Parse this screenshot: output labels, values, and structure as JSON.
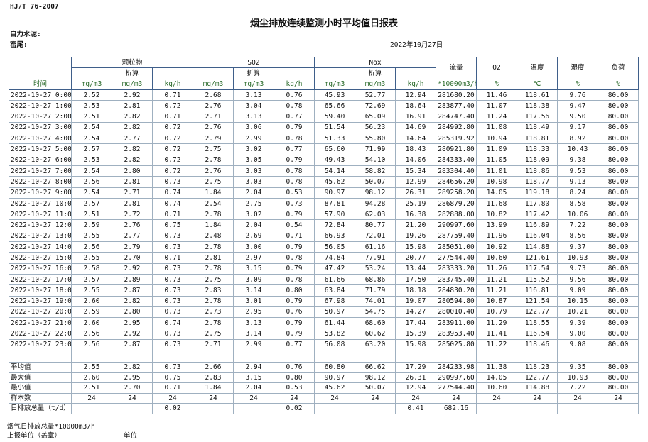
{
  "header": {
    "standard": "HJ/T  76-2007",
    "title": "烟尘排放连续监测小时平均值日报表",
    "company": "自力水泥:",
    "unit": "窑尾:",
    "date": "2022年10月27日"
  },
  "table": {
    "groups": [
      "颗粒物",
      "SO2",
      "Nox"
    ],
    "converted": [
      "折算",
      "折算",
      "折算"
    ],
    "single_headers": [
      "流量",
      "O2",
      "温度",
      "湿度",
      "负荷"
    ],
    "units": [
      "时间",
      "mg/m3",
      "mg/m3",
      "kg/h",
      "mg/m3",
      "mg/m3",
      "kg/h",
      "mg/m3",
      "mg/m3",
      "kg/h",
      "*10000m3/h",
      "%",
      "℃",
      "%",
      "%"
    ],
    "rows": [
      [
        "2022-10-27  0:00",
        "2.52",
        "2.92",
        "0.71",
        "2.68",
        "3.13",
        "0.76",
        "45.93",
        "52.77",
        "12.94",
        "281680.20",
        "11.46",
        "118.61",
        "9.76",
        "80.00"
      ],
      [
        "2022-10-27  1:00",
        "2.53",
        "2.81",
        "0.72",
        "2.76",
        "3.04",
        "0.78",
        "65.66",
        "72.69",
        "18.64",
        "283877.40",
        "11.07",
        "118.38",
        "9.47",
        "80.00"
      ],
      [
        "2022-10-27  2:00",
        "2.51",
        "2.82",
        "0.71",
        "2.71",
        "3.13",
        "0.77",
        "59.40",
        "65.09",
        "16.91",
        "284747.40",
        "11.24",
        "117.56",
        "9.50",
        "80.00"
      ],
      [
        "2022-10-27  3:00",
        "2.54",
        "2.82",
        "0.72",
        "2.76",
        "3.06",
        "0.79",
        "51.54",
        "56.23",
        "14.69",
        "284992.80",
        "11.08",
        "118.49",
        "9.17",
        "80.00"
      ],
      [
        "2022-10-27  4:00",
        "2.54",
        "2.77",
        "0.72",
        "2.79",
        "2.99",
        "0.78",
        "51.33",
        "55.80",
        "14.64",
        "285319.92",
        "10.94",
        "118.81",
        "8.92",
        "80.00"
      ],
      [
        "2022-10-27  5:00",
        "2.57",
        "2.82",
        "0.72",
        "2.75",
        "3.02",
        "0.77",
        "65.60",
        "71.99",
        "18.43",
        "280921.80",
        "11.09",
        "118.33",
        "10.43",
        "80.00"
      ],
      [
        "2022-10-27  6:00",
        "2.53",
        "2.82",
        "0.72",
        "2.78",
        "3.05",
        "0.79",
        "49.43",
        "54.10",
        "14.06",
        "284333.40",
        "11.05",
        "118.09",
        "9.38",
        "80.00"
      ],
      [
        "2022-10-27  7:00",
        "2.54",
        "2.80",
        "0.72",
        "2.76",
        "3.03",
        "0.78",
        "54.14",
        "58.82",
        "15.34",
        "283304.40",
        "11.01",
        "118.86",
        "9.53",
        "80.00"
      ],
      [
        "2022-10-27  8:00",
        "2.56",
        "2.81",
        "0.73",
        "2.75",
        "3.03",
        "0.78",
        "45.62",
        "50.07",
        "12.99",
        "284656.20",
        "10.98",
        "118.77",
        "9.13",
        "80.00"
      ],
      [
        "2022-10-27  9:00",
        "2.54",
        "2.71",
        "0.74",
        "1.84",
        "2.04",
        "0.53",
        "90.97",
        "98.12",
        "26.31",
        "289258.20",
        "14.05",
        "119.18",
        "8.24",
        "80.00"
      ],
      [
        "2022-10-27  10:00",
        "2.57",
        "2.81",
        "0.74",
        "2.54",
        "2.75",
        "0.73",
        "87.81",
        "94.28",
        "25.19",
        "286879.20",
        "11.68",
        "117.80",
        "8.58",
        "80.00"
      ],
      [
        "2022-10-27  11:00",
        "2.51",
        "2.72",
        "0.71",
        "2.78",
        "3.02",
        "0.79",
        "57.90",
        "62.03",
        "16.38",
        "282888.00",
        "10.82",
        "117.42",
        "10.06",
        "80.00"
      ],
      [
        "2022-10-27  12:00",
        "2.59",
        "2.76",
        "0.75",
        "1.84",
        "2.04",
        "0.54",
        "72.84",
        "80.77",
        "21.20",
        "290997.60",
        "13.99",
        "116.89",
        "7.22",
        "80.00"
      ],
      [
        "2022-10-27  13:00",
        "2.55",
        "2.77",
        "0.73",
        "2.48",
        "2.69",
        "0.71",
        "66.93",
        "72.01",
        "19.26",
        "287759.40",
        "11.96",
        "116.04",
        "8.56",
        "80.00"
      ],
      [
        "2022-10-27  14:00",
        "2.56",
        "2.79",
        "0.73",
        "2.78",
        "3.00",
        "0.79",
        "56.05",
        "61.16",
        "15.98",
        "285051.00",
        "10.92",
        "114.88",
        "9.37",
        "80.00"
      ],
      [
        "2022-10-27  15:00",
        "2.55",
        "2.70",
        "0.71",
        "2.81",
        "2.97",
        "0.78",
        "74.84",
        "77.91",
        "20.77",
        "277544.40",
        "10.60",
        "121.61",
        "10.93",
        "80.00"
      ],
      [
        "2022-10-27  16:00",
        "2.58",
        "2.92",
        "0.73",
        "2.78",
        "3.15",
        "0.79",
        "47.42",
        "53.24",
        "13.44",
        "283333.20",
        "11.26",
        "117.54",
        "9.73",
        "80.00"
      ],
      [
        "2022-10-27  17:00",
        "2.57",
        "2.89",
        "0.73",
        "2.75",
        "3.09",
        "0.78",
        "61.66",
        "68.86",
        "17.50",
        "283745.40",
        "11.21",
        "115.52",
        "9.56",
        "80.00"
      ],
      [
        "2022-10-27  18:00",
        "2.55",
        "2.87",
        "0.73",
        "2.83",
        "3.14",
        "0.80",
        "63.84",
        "71.79",
        "18.18",
        "284830.20",
        "11.21",
        "116.81",
        "9.09",
        "80.00"
      ],
      [
        "2022-10-27  19:00",
        "2.60",
        "2.82",
        "0.73",
        "2.78",
        "3.01",
        "0.79",
        "67.98",
        "74.01",
        "19.07",
        "280594.80",
        "10.87",
        "121.54",
        "10.15",
        "80.00"
      ],
      [
        "2022-10-27  20:00",
        "2.59",
        "2.80",
        "0.73",
        "2.73",
        "2.95",
        "0.76",
        "50.97",
        "54.75",
        "14.27",
        "280010.40",
        "10.79",
        "122.77",
        "10.21",
        "80.00"
      ],
      [
        "2022-10-27  21:00",
        "2.60",
        "2.95",
        "0.74",
        "2.78",
        "3.13",
        "0.79",
        "61.44",
        "68.60",
        "17.44",
        "283911.00",
        "11.29",
        "118.55",
        "9.39",
        "80.00"
      ],
      [
        "2022-10-27  22:00",
        "2.56",
        "2.92",
        "0.73",
        "2.75",
        "3.14",
        "0.79",
        "53.82",
        "60.62",
        "15.39",
        "283953.40",
        "11.41",
        "116.54",
        "9.00",
        "80.00"
      ],
      [
        "2022-10-27  23:00",
        "2.56",
        "2.87",
        "0.73",
        "2.71",
        "2.99",
        "0.77",
        "56.08",
        "63.20",
        "15.98",
        "285025.80",
        "11.22",
        "118.46",
        "9.08",
        "80.00"
      ]
    ],
    "summary": [
      [
        "平均值",
        "2.55",
        "2.82",
        "0.73",
        "2.66",
        "2.94",
        "0.76",
        "60.80",
        "66.62",
        "17.29",
        "284233.98",
        "11.38",
        "118.23",
        "9.35",
        "80.00"
      ],
      [
        "最大值",
        "2.60",
        "2.95",
        "0.75",
        "2.83",
        "3.15",
        "0.80",
        "90.97",
        "98.12",
        "26.31",
        "290997.60",
        "14.05",
        "122.77",
        "10.93",
        "80.00"
      ],
      [
        "最小值",
        "2.51",
        "2.70",
        "0.71",
        "1.84",
        "2.04",
        "0.53",
        "45.62",
        "50.07",
        "12.94",
        "277544.40",
        "10.60",
        "114.88",
        "7.22",
        "80.00"
      ],
      [
        "样本数",
        "24",
        "24",
        "24",
        "24",
        "24",
        "24",
        "24",
        "24",
        "24",
        "24",
        "24",
        "24",
        "24",
        "24"
      ],
      [
        "日排放总量（t/d）",
        null,
        null,
        "0.02",
        null,
        null,
        "0.02",
        null,
        null,
        "0.41",
        "682.16",
        null,
        null,
        null,
        null
      ]
    ]
  },
  "footer": {
    "flue_total": "烟气日排放总量*10000m3/h",
    "reporter": "上报单位（盖章）",
    "unit": "单位"
  }
}
